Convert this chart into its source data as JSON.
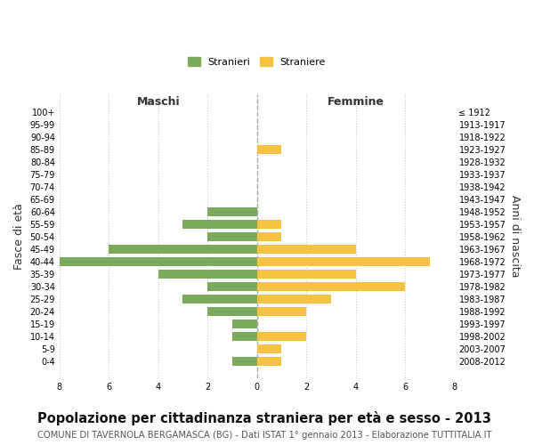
{
  "age_groups": [
    "100+",
    "95-99",
    "90-94",
    "85-89",
    "80-84",
    "75-79",
    "70-74",
    "65-69",
    "60-64",
    "55-59",
    "50-54",
    "45-49",
    "40-44",
    "35-39",
    "30-34",
    "25-29",
    "20-24",
    "15-19",
    "10-14",
    "5-9",
    "0-4"
  ],
  "birth_years": [
    "≤ 1912",
    "1913-1917",
    "1918-1922",
    "1923-1927",
    "1928-1932",
    "1933-1937",
    "1938-1942",
    "1943-1947",
    "1948-1952",
    "1953-1957",
    "1958-1962",
    "1963-1967",
    "1968-1972",
    "1973-1977",
    "1978-1982",
    "1983-1987",
    "1988-1992",
    "1993-1997",
    "1998-2002",
    "2003-2007",
    "2008-2012"
  ],
  "maschi": [
    0,
    0,
    0,
    0,
    0,
    0,
    0,
    0,
    2,
    3,
    2,
    6,
    8,
    4,
    2,
    3,
    2,
    1,
    1,
    0,
    1
  ],
  "femmine": [
    0,
    0,
    0,
    1,
    0,
    0,
    0,
    0,
    0,
    1,
    1,
    4,
    7,
    4,
    6,
    3,
    2,
    0,
    2,
    1,
    1
  ],
  "color_maschi": "#7aaa5a",
  "color_femmine": "#f5c242",
  "bg_color": "#ffffff",
  "grid_color": "#cccccc",
  "title": "Popolazione per cittadinanza straniera per età e sesso - 2013",
  "subtitle": "COMUNE DI TAVERNOLA BERGAMASCA (BG) - Dati ISTAT 1° gennaio 2013 - Elaborazione TUTTITALIA.IT",
  "xlabel_left": "Maschi",
  "xlabel_right": "Femmine",
  "ylabel_left": "Fasce di età",
  "ylabel_right": "Anni di nascita",
  "legend_maschi": "Stranieri",
  "legend_femmine": "Straniere",
  "xlim": 8,
  "title_fontsize": 10.5,
  "subtitle_fontsize": 7.2,
  "tick_fontsize": 7,
  "label_fontsize": 9
}
